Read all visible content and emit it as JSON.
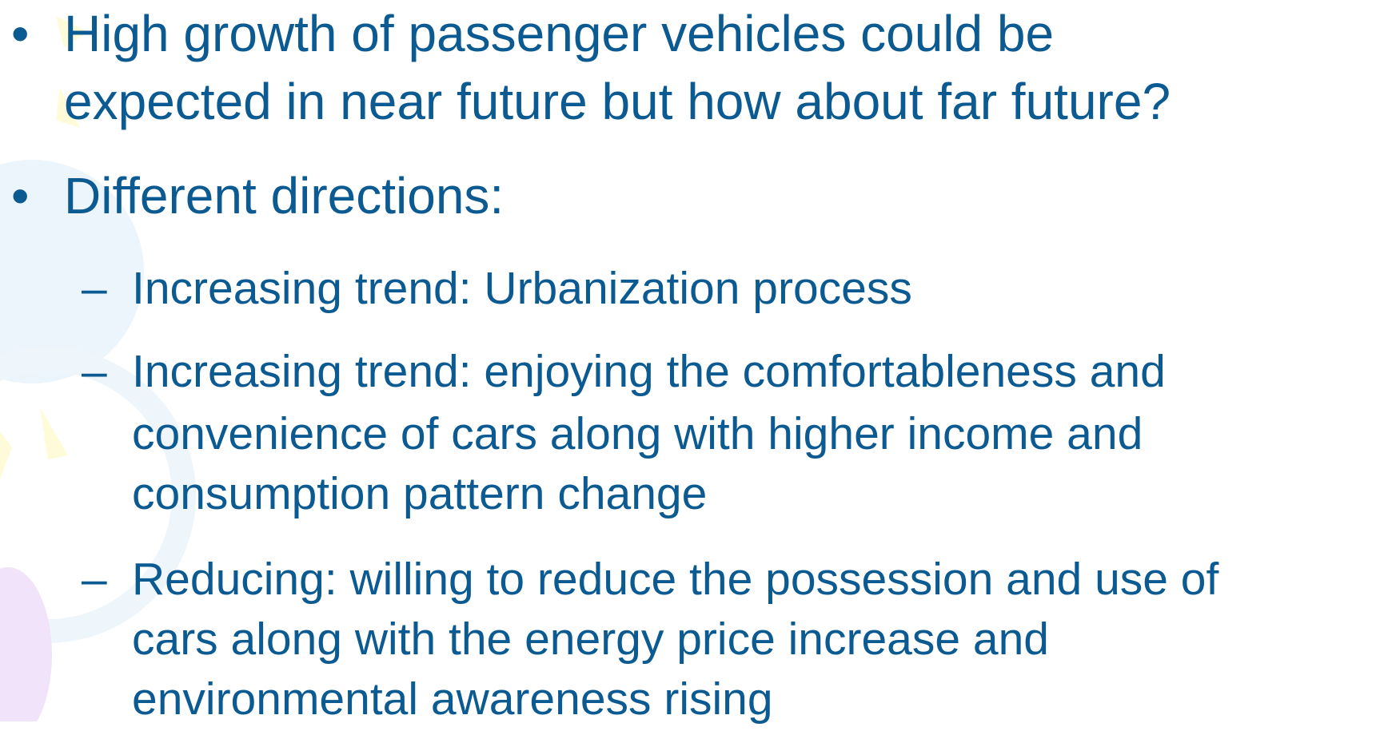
{
  "slide": {
    "items": [
      {
        "marker": "•",
        "level": 1,
        "lines": [
          "High growth of passenger vehicles could be",
          "expected in near future but how about far future?"
        ]
      },
      {
        "marker": "•",
        "level": 1,
        "lines": [
          "Different directions:"
        ]
      },
      {
        "marker": "–",
        "level": 2,
        "lines": [
          "Increasing trend: Urbanization process"
        ]
      },
      {
        "marker": "–",
        "level": 2,
        "lines": [
          "Increasing trend: enjoying the comfortableness and",
          "convenience of cars along with higher income and",
          "consumption pattern change"
        ]
      },
      {
        "marker": "–",
        "level": 2,
        "lines": [
          "Reducing: willing to reduce the possession and use of",
          "cars along with the energy price increase and",
          "environmental awareness rising"
        ]
      }
    ]
  }
}
